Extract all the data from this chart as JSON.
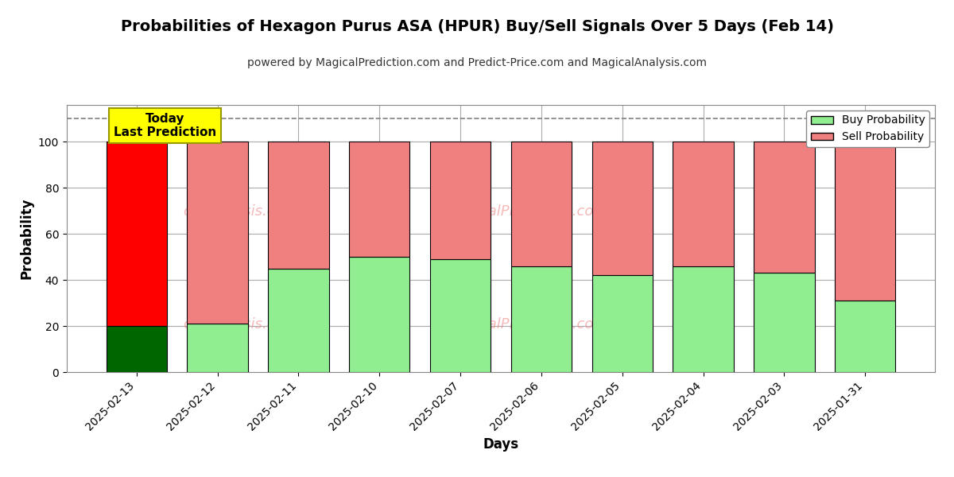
{
  "title": "Probabilities of Hexagon Purus ASA (HPUR) Buy/Sell Signals Over 5 Days (Feb 14)",
  "subtitle": "powered by MagicalPrediction.com and Predict-Price.com and MagicalAnalysis.com",
  "xlabel": "Days",
  "ylabel": "Probability",
  "dates": [
    "2025-02-13",
    "2025-02-12",
    "2025-02-11",
    "2025-02-10",
    "2025-02-07",
    "2025-02-06",
    "2025-02-05",
    "2025-02-04",
    "2025-02-03",
    "2025-01-31"
  ],
  "buy_values": [
    20,
    21,
    45,
    50,
    49,
    46,
    42,
    46,
    43,
    31
  ],
  "sell_values": [
    80,
    79,
    55,
    50,
    51,
    54,
    58,
    54,
    57,
    69
  ],
  "buy_color_today": "#006600",
  "sell_color_today": "#FF0000",
  "buy_color_normal": "#90EE90",
  "sell_color_normal": "#F08080",
  "today_box_color": "#FFFF00",
  "today_box_edge": "#999900",
  "today_label": "Today\nLast Prediction",
  "dashed_line_y": 110,
  "ylim": [
    0,
    116
  ],
  "yticks": [
    0,
    20,
    40,
    60,
    80,
    100
  ],
  "watermark_color": "#F08080",
  "grid_color": "#aaaaaa",
  "background_color": "#ffffff",
  "legend_buy_label": "Buy Probability",
  "legend_sell_label": "Sell Probability",
  "bar_edge_color": "#000000",
  "bar_edge_width": 0.8,
  "title_fontsize": 14,
  "subtitle_fontsize": 10,
  "xlabel_fontsize": 12,
  "ylabel_fontsize": 12
}
